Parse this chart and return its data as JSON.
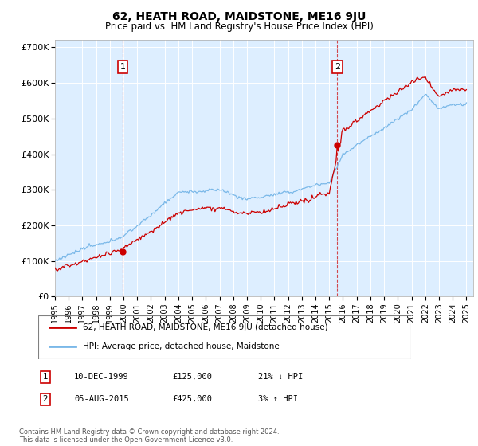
{
  "title": "62, HEATH ROAD, MAIDSTONE, ME16 9JU",
  "subtitle": "Price paid vs. HM Land Registry's House Price Index (HPI)",
  "ylabel_ticks": [
    "£0",
    "£100K",
    "£200K",
    "£300K",
    "£400K",
    "£500K",
    "£600K",
    "£700K"
  ],
  "ylim": [
    0,
    720000
  ],
  "xlim_start": 1995.0,
  "xlim_end": 2025.5,
  "hpi_color": "#7ab8e8",
  "price_color": "#cc0000",
  "background_color": "#ddeeff",
  "marker1_x": 1999.94,
  "marker1_y": 125000,
  "marker1_label": "1",
  "marker2_x": 2015.58,
  "marker2_y": 425000,
  "marker2_label": "2",
  "legend_line1": "62, HEATH ROAD, MAIDSTONE, ME16 9JU (detached house)",
  "legend_line2": "HPI: Average price, detached house, Maidstone",
  "note1_label": "1",
  "note1_date": "10-DEC-1999",
  "note1_price": "£125,000",
  "note1_pct": "21% ↓ HPI",
  "note2_label": "2",
  "note2_date": "05-AUG-2015",
  "note2_price": "£425,000",
  "note2_pct": "3% ↑ HPI",
  "footnote": "Contains HM Land Registry data © Crown copyright and database right 2024.\nThis data is licensed under the Open Government Licence v3.0."
}
